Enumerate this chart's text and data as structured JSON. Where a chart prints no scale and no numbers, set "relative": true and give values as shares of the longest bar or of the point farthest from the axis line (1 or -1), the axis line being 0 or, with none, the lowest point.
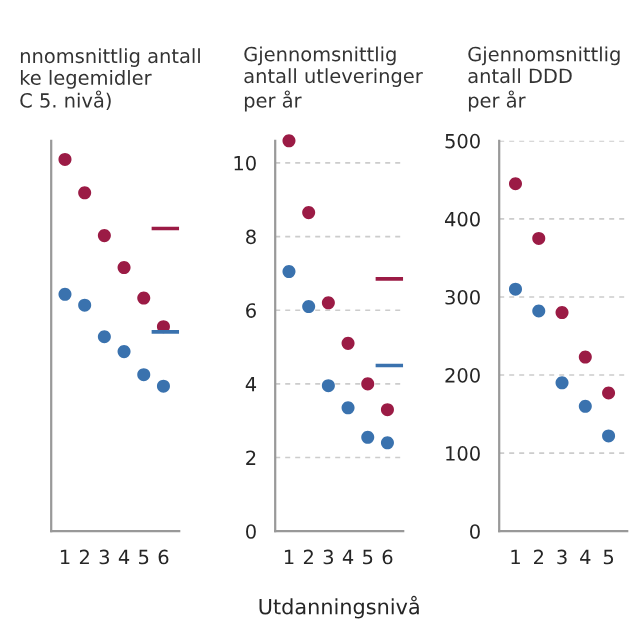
{
  "chart_data": [
    {
      "type": "scatter",
      "title": "nnomsnittlig antall\nke legemidler\nC 5. nivå)",
      "relative": true,
      "tick_labels": "x",
      "marker": "circle",
      "categories": [
        "1",
        "2",
        "3",
        "4",
        "5",
        "6"
      ],
      "series": [
        {
          "color": "#9b1b45",
          "values": [
            1.0,
            0.91,
            0.795,
            0.709,
            0.627,
            0.55
          ]
        },
        {
          "color": "#3a72ae",
          "values": [
            0.637,
            0.608,
            0.523,
            0.483,
            0.421,
            0.39
          ]
        }
      ],
      "ref_lines": [
        {
          "axis": "y",
          "value": 0.814,
          "color": "#9b1b45"
        },
        {
          "axis": "y",
          "value": 0.536,
          "color": "#3a72ae"
        }
      ]
    },
    {
      "type": "scatter",
      "title": "Gjennomsnittlig\nantall utleveringer\nper år",
      "xlabel": "Utdanningsnivå",
      "marker": "circle",
      "grid": "y",
      "categories": [
        "1",
        "2",
        "3",
        "4",
        "5",
        "6"
      ],
      "ylim": [
        0,
        10.6
      ],
      "yticks": [
        0,
        2,
        4,
        6,
        8,
        10
      ],
      "series": [
        {
          "color": "#9b1b45",
          "values": [
            10.6,
            8.65,
            6.2,
            5.1,
            4.0,
            3.3
          ]
        },
        {
          "color": "#3a72ae",
          "values": [
            7.05,
            6.1,
            3.95,
            3.35,
            2.55,
            2.4
          ]
        }
      ],
      "ref_lines": [
        {
          "axis": "y",
          "value": 6.85,
          "color": "#9b1b45"
        },
        {
          "axis": "y",
          "value": 4.5,
          "color": "#3a72ae"
        }
      ]
    },
    {
      "type": "scatter",
      "title": "Gjennomsnittlig\nantall DDD\nper år",
      "marker": "circle",
      "grid": "y",
      "categories": [
        "1",
        "2",
        "3",
        "4",
        "5"
      ],
      "ylim": [
        0,
        500
      ],
      "yticks": [
        0,
        100,
        200,
        300,
        400,
        500
      ],
      "series": [
        {
          "color": "#9b1b45",
          "values": [
            445,
            375,
            280,
            223,
            177
          ]
        },
        {
          "color": "#3a72ae",
          "values": [
            310,
            282,
            190,
            160,
            122
          ]
        }
      ]
    }
  ]
}
